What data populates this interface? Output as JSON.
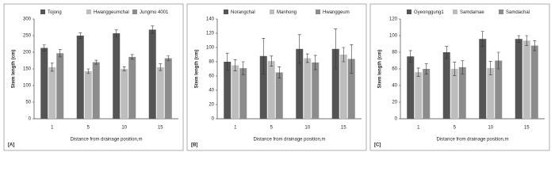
{
  "chart_data": [
    {
      "type": "bar",
      "panel_label": "[A]",
      "ylabel": "Stem length (cm)",
      "xlabel": "Distance from drainage position,m",
      "categories": [
        "1",
        "5",
        "10",
        "15"
      ],
      "ylim": [
        0,
        300
      ],
      "yticks": [
        0,
        50,
        100,
        150,
        200,
        250,
        300
      ],
      "series": [
        {
          "name": "Tojong",
          "color": "#555555",
          "values": [
            213,
            250,
            257,
            268
          ],
          "errors": [
            9,
            8,
            10,
            11
          ]
        },
        {
          "name": "Hwanggeumchal",
          "color": "#bdbdbd",
          "values": [
            155,
            143,
            150,
            155
          ],
          "errors": [
            12,
            7,
            6,
            10
          ]
        },
        {
          "name": "Jungmo 4001",
          "color": "#8c8c8c",
          "values": [
            197,
            170,
            186,
            182
          ],
          "errors": [
            11,
            6,
            7,
            7
          ]
        }
      ]
    },
    {
      "type": "bar",
      "panel_label": "[B]",
      "ylabel": "Stem length (cm)",
      "xlabel": "Distance from drainage position,m",
      "categories": [
        "1",
        "5",
        "10",
        "15"
      ],
      "ylim": [
        0,
        140
      ],
      "yticks": [
        0,
        20,
        40,
        60,
        80,
        100,
        120,
        140
      ],
      "series": [
        {
          "name": "Norangchal",
          "color": "#555555",
          "values": [
            80,
            88,
            98,
            98
          ],
          "errors": [
            12,
            25,
            20,
            28
          ]
        },
        {
          "name": "Manhong",
          "color": "#bdbdbd",
          "values": [
            75,
            81,
            85,
            90
          ],
          "errors": [
            8,
            7,
            6,
            10
          ]
        },
        {
          "name": "Hwanggeum",
          "color": "#8c8c8c",
          "values": [
            71,
            65,
            79,
            84
          ],
          "errors": [
            9,
            8,
            10,
            20
          ]
        }
      ]
    },
    {
      "type": "bar",
      "panel_label": "[C]",
      "ylabel": "Stem length (cm)",
      "xlabel": "Distance from drainage position,m",
      "categories": [
        "1",
        "5",
        "10",
        "15"
      ],
      "ylim": [
        0,
        120
      ],
      "yticks": [
        0,
        20,
        40,
        60,
        80,
        100,
        120
      ],
      "series": [
        {
          "name": "Gyeonggung1",
          "color": "#555555",
          "values": [
            75,
            80,
            96,
            96
          ],
          "errors": [
            7,
            7,
            9,
            4
          ]
        },
        {
          "name": "Samdamae",
          "color": "#bdbdbd",
          "values": [
            56,
            60,
            61,
            94
          ],
          "errors": [
            5,
            8,
            8,
            6
          ]
        },
        {
          "name": "Samdachal",
          "color": "#8c8c8c",
          "values": [
            60,
            62,
            70,
            88
          ],
          "errors": [
            6,
            8,
            10,
            6
          ]
        }
      ]
    }
  ]
}
